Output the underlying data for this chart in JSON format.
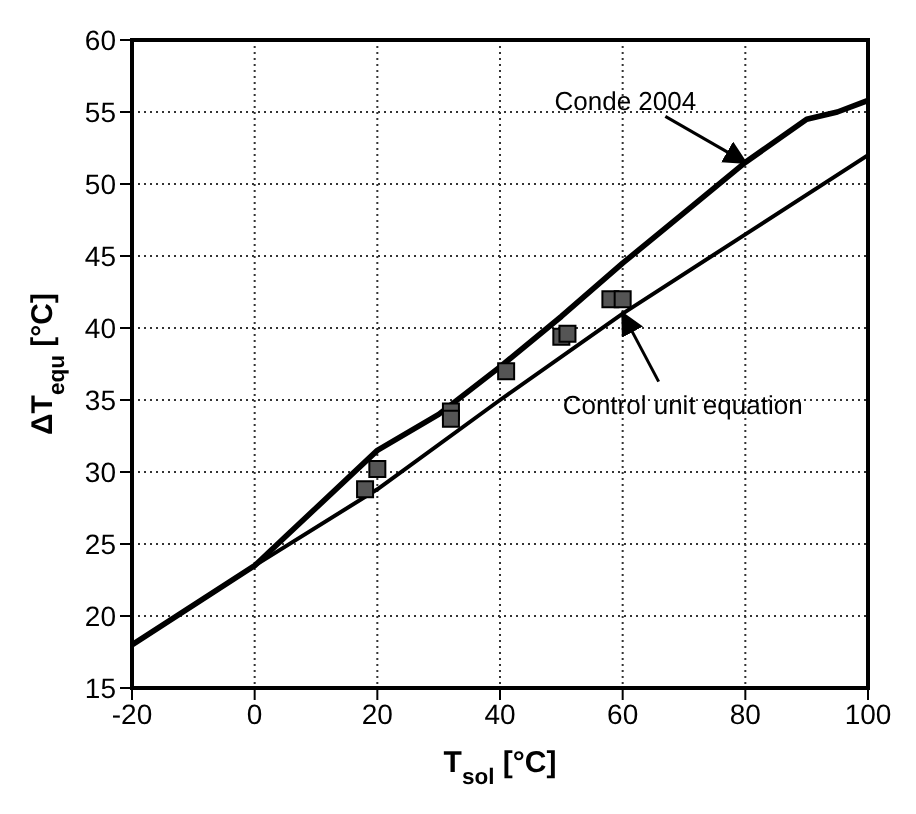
{
  "chart_data": {
    "type": "line",
    "xlabel": "T$_{sol}$ [°C]",
    "ylabel": "ΔT$_{equ}$ [°C]",
    "series": [
      {
        "name": "Conde 2004",
        "color": "#000000",
        "x": [
          -20,
          0,
          5,
          10,
          20,
          30,
          40,
          50,
          60,
          70,
          80,
          90,
          95,
          100
        ],
        "values": [
          18,
          23.5,
          25.5,
          27.5,
          31.5,
          34,
          37.3,
          40.8,
          44.5,
          48,
          51.5,
          54.5,
          55,
          55.8
        ]
      },
      {
        "name": "Control unit equation",
        "color": "#000000",
        "x": [
          -20,
          0,
          20,
          40,
          60,
          80,
          100
        ],
        "values": [
          18,
          23.5,
          28.8,
          35,
          41,
          46.5,
          52
        ]
      },
      {
        "type": "scatter",
        "marker": "square",
        "color": "#555555",
        "x": [
          18,
          20,
          32,
          32,
          41,
          50,
          51,
          58,
          60
        ],
        "values": [
          28.8,
          30.2,
          34.2,
          33.7,
          37,
          39.4,
          39.6,
          42,
          42
        ]
      }
    ],
    "xlim": [
      -20,
      100
    ],
    "xticks": [
      -20,
      0,
      20,
      40,
      60,
      80,
      100
    ],
    "ylim": [
      15,
      60
    ],
    "yticks": [
      15,
      20,
      25,
      30,
      35,
      40,
      45,
      50,
      55,
      60
    ],
    "grid": true,
    "legend": false,
    "line_style": "solid"
  }
}
